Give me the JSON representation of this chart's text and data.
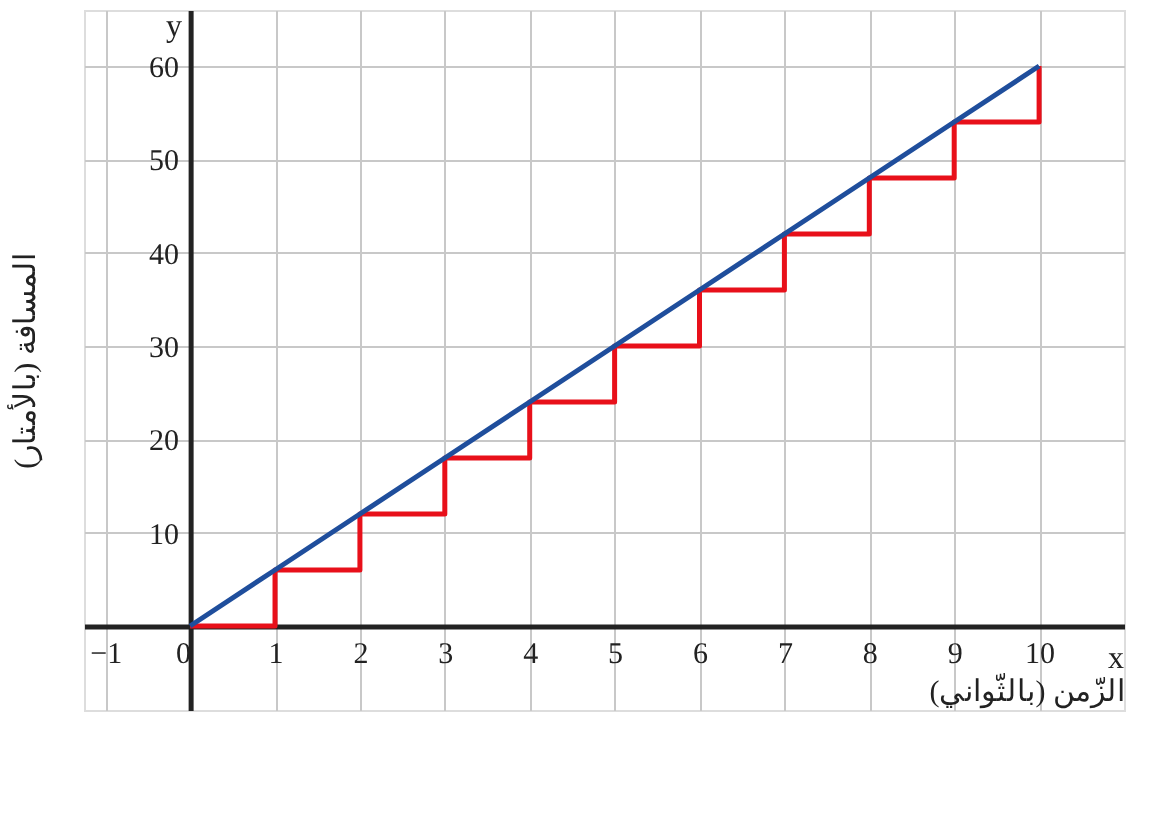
{
  "chart_data": {
    "type": "line",
    "xlabel": "الزّمن (بالثّواني)",
    "ylabel": "المسافة (بالأمتار)",
    "x": [
      0,
      1,
      2,
      3,
      4,
      5,
      6,
      7,
      8,
      9,
      10
    ],
    "series": [
      {
        "type": "step",
        "color": "#e8101a",
        "values": [
          0,
          6,
          12,
          18,
          24,
          30,
          36,
          42,
          48,
          54,
          60
        ]
      },
      {
        "color": "#1f4e9c",
        "values": [
          0,
          6,
          12,
          18,
          24,
          30,
          36,
          42,
          48,
          54,
          60
        ]
      }
    ],
    "xlim": [
      -1.25,
      11
    ],
    "ylim": [
      -9,
      66
    ],
    "xticks": [
      -1,
      0,
      1,
      2,
      3,
      4,
      5,
      6,
      7,
      8,
      9,
      10
    ],
    "yticks": [
      10,
      20,
      30,
      40,
      50,
      60
    ],
    "grid": true,
    "marker": "none",
    "line_style": "solid",
    "annotations": [
      "x",
      "y"
    ]
  }
}
